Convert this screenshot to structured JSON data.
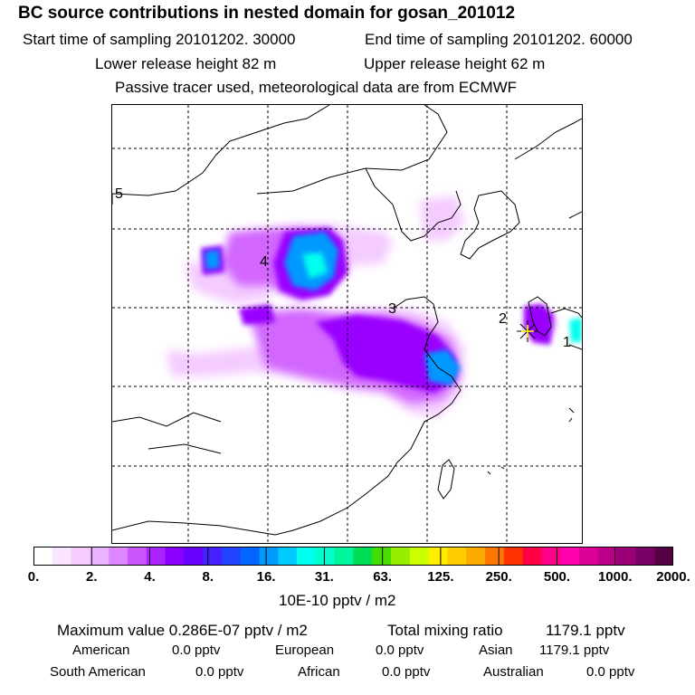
{
  "header": {
    "title": "BC  source contributions in nested domain for gosan_201012",
    "start_label": "Start time of sampling 20101202. 30000",
    "end_label": "End time of sampling 20101202. 60000",
    "lower_label": "Lower release height   82 m",
    "upper_label": "Upper release height   62 m",
    "tracer_note": "Passive tracer used, meteorological data are from ECMWF"
  },
  "map": {
    "region_labels": [
      "5",
      "4",
      "3",
      "2",
      "1"
    ],
    "plume_colors": [
      "#f4ccff",
      "#d266ff",
      "#9900ff",
      "#3300ff",
      "#0099ff",
      "#00ffee",
      "#00e09a"
    ]
  },
  "colorbar": {
    "colors": [
      "#ffffff",
      "#fbe6ff",
      "#f4ccff",
      "#eab3ff",
      "#dd88ff",
      "#cc55ff",
      "#aa22ff",
      "#8a00ff",
      "#6600ff",
      "#4422ff",
      "#2244ff",
      "#0066ff",
      "#0099ff",
      "#00ccff",
      "#00ffee",
      "#00ffcc",
      "#00f59a",
      "#00dd55",
      "#44dd00",
      "#99ee00",
      "#ccff00",
      "#ffee00",
      "#ffcc00",
      "#ffaa00",
      "#ff7700",
      "#ff3300",
      "#ff0044",
      "#ff0088",
      "#ff00aa",
      "#dd0099",
      "#bb0088",
      "#990077",
      "#770066",
      "#550044"
    ],
    "ticks": [
      "0.",
      "2.",
      "4.",
      "8.",
      "16.",
      "31.",
      "63.",
      "125.",
      "250.",
      "500.",
      "1000.",
      "2000."
    ],
    "units": "10E-10 pptv / m2"
  },
  "summary": {
    "max_label": "Maximum value  0.286E-07 pptv / m2",
    "total_label": "Total mixing ratio",
    "total_value": "1179.1 pptv"
  },
  "regions": [
    {
      "name": "American",
      "value": "0.0 pptv"
    },
    {
      "name": "European",
      "value": "0.0 pptv"
    },
    {
      "name": "Asian",
      "value": "1179.1 pptv"
    },
    {
      "name": "South American",
      "value": "0.0 pptv"
    },
    {
      "name": "African",
      "value": "0.0 pptv"
    },
    {
      "name": "Australian",
      "value": "0.0 pptv"
    }
  ]
}
